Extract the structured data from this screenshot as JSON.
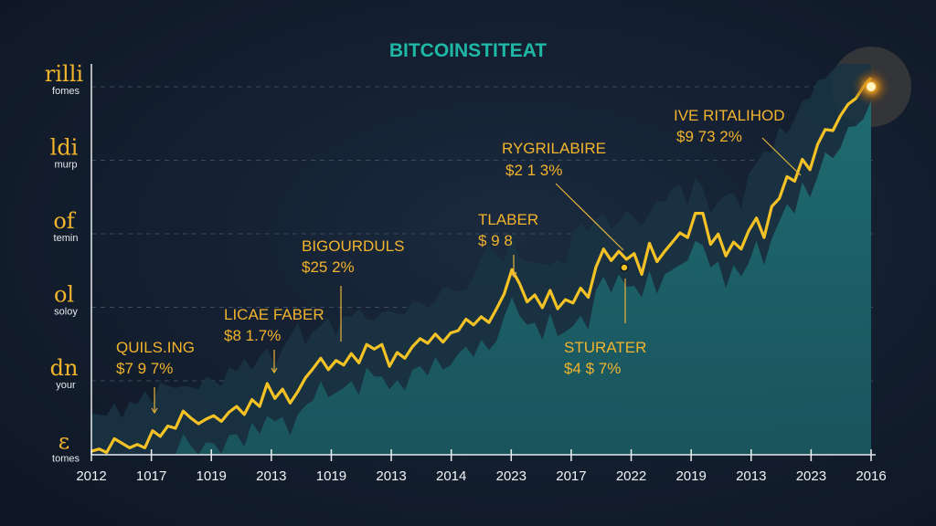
{
  "chart_data": {
    "type": "area",
    "title": "BITCOINSTITEAT",
    "y_labels": [
      {
        "big": "rilli",
        "small": "fomes"
      },
      {
        "big": "ldi",
        "small": "murp"
      },
      {
        "big": "of",
        "small": "temin"
      },
      {
        "big": "ol",
        "small": "soloy"
      },
      {
        "big": "dn",
        "small": "your"
      },
      {
        "big": "ε",
        "small": "tomes"
      }
    ],
    "x_tick_labels": [
      "2012",
      "1017",
      "1019",
      "2013",
      "1019",
      "2013",
      "2014",
      "2023",
      "2017",
      "2022",
      "2019",
      "2013",
      "2023",
      "2016"
    ],
    "annotations": [
      {
        "title": "QUILS.ING",
        "value": "$7 9 7%"
      },
      {
        "title": "LICAE FABER",
        "value": "$8 1.7%"
      },
      {
        "title": "BIGOURDULS",
        "value": "$25 2%"
      },
      {
        "title": "TLABER",
        "value": "$ 9 8"
      },
      {
        "title": "RYGRILABIRE",
        "value": "$2 1 3%"
      },
      {
        "title": "STURATER",
        "value": "$4 $ 7%"
      },
      {
        "title": "IVE RITALIHOD",
        "value": "$9 73 2%"
      }
    ],
    "series": [
      {
        "values": [
          3,
          5,
          2,
          14,
          10,
          6,
          9,
          6,
          21,
          16,
          25,
          23,
          38,
          32,
          27,
          31,
          34,
          29,
          37,
          42,
          35,
          48,
          42,
          62,
          49,
          57,
          45,
          55,
          67,
          75,
          84,
          74,
          82,
          78,
          88,
          80,
          96,
          92,
          96,
          77,
          89,
          84,
          94,
          101,
          97,
          105,
          98,
          106,
          108,
          118,
          113,
          120,
          115,
          127,
          140,
          161,
          149,
          133,
          139,
          128,
          143,
          127,
          135,
          132,
          145,
          137,
          163,
          179,
          169,
          177,
          170,
          175,
          157,
          184,
          168,
          177,
          185,
          193,
          189,
          210,
          210,
          183,
          192,
          173,
          185,
          179,
          195,
          206,
          189,
          216,
          223,
          242,
          238,
          257,
          248,
          270,
          283,
          282,
          295,
          305,
          310,
          320,
          328
        ]
      }
    ],
    "y_range": [
      0,
      340
    ],
    "grid": true
  }
}
